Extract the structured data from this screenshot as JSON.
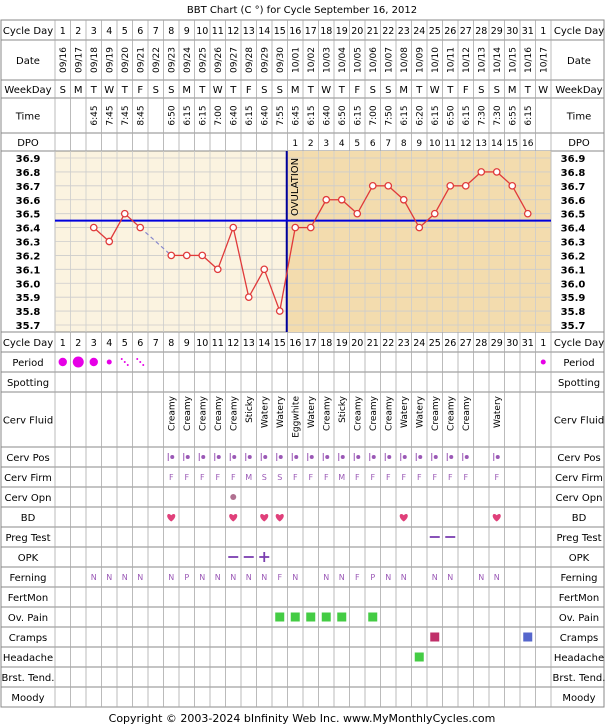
{
  "title": "BBT Chart (C °) for Cycle September 16, 2012",
  "footer": "Copyright © 2003-2024 bInfinity Web Inc.    www.MyMonthlyCycles.com",
  "colors": {
    "temp_line": "#e03a3a",
    "coverline": "#0000dd",
    "ovulation": "#000099",
    "post_ov_fill": "#f3dcae",
    "pre_ov_fill": "#fbf3e0",
    "grid": "#cccccc",
    "row_border": "#888888",
    "period": "#e600e6",
    "bd_heart": "#e0407a",
    "preg_test": "#7b3fb0",
    "ov_pain": "#44cc44",
    "cramps1": "#c0306a",
    "cramps2": "#5566cc",
    "headache": "#44cc44"
  },
  "row_labels": {
    "cycle_day": "Cycle Day",
    "date": "Date",
    "weekday": "WeekDay",
    "time": "Time",
    "dpo": "DPO",
    "period": "Period",
    "spotting": "Spotting",
    "cerv_fluid": "Cerv Fluid",
    "cerv_pos": "Cerv Pos",
    "cerv_firm": "Cerv Firm",
    "cerv_opn": "Cerv Opn",
    "bd": "BD",
    "preg_test": "Preg Test",
    "opk": "OPK",
    "ferning": "Ferning",
    "fertmon": "FertMon",
    "ov_pain": "Ov. Pain",
    "cramps": "Cramps",
    "headache": "Headache",
    "brst_tend": "Brst. Tend.",
    "moody": "Moody"
  },
  "ovulation_label": "OVULATION",
  "cycle_days": [
    "1",
    "2",
    "3",
    "4",
    "5",
    "6",
    "7",
    "8",
    "9",
    "10",
    "11",
    "12",
    "13",
    "14",
    "15",
    "16",
    "17",
    "18",
    "19",
    "20",
    "21",
    "22",
    "23",
    "24",
    "25",
    "26",
    "27",
    "28",
    "29",
    "30",
    "31",
    "1"
  ],
  "dates": [
    "09/16",
    "09/17",
    "09/18",
    "09/19",
    "09/20",
    "09/21",
    "09/22",
    "09/23",
    "09/24",
    "09/25",
    "09/26",
    "09/27",
    "09/28",
    "09/29",
    "09/30",
    "10/01",
    "10/02",
    "10/03",
    "10/04",
    "10/05",
    "10/06",
    "10/07",
    "10/08",
    "10/09",
    "10/10",
    "10/11",
    "10/12",
    "10/13",
    "10/14",
    "10/15",
    "10/16",
    "10/17"
  ],
  "weekdays": [
    "S",
    "M",
    "T",
    "W",
    "T",
    "F",
    "S",
    "S",
    "M",
    "T",
    "W",
    "T",
    "F",
    "S",
    "S",
    "M",
    "T",
    "W",
    "T",
    "F",
    "S",
    "S",
    "M",
    "T",
    "W",
    "T",
    "F",
    "S",
    "S",
    "M",
    "T",
    "W"
  ],
  "times": [
    "",
    "",
    "6:45",
    "7:45",
    "7:45",
    "8:45",
    "",
    "6:50",
    "6:15",
    "6:15",
    "7:00",
    "6:40",
    "6:15",
    "6:40",
    "7:55",
    "6:45",
    "6:15",
    "6:40",
    "6:50",
    "6:15",
    "7:00",
    "7:50",
    "6:15",
    "6:20",
    "6:15",
    "6:50",
    "6:15",
    "7:30",
    "7:30",
    "6:55",
    "6:15",
    ""
  ],
  "dpo": [
    "",
    "",
    "",
    "",
    "",
    "",
    "",
    "",
    "",
    "",
    "",
    "",
    "",
    "",
    "",
    "1",
    "2",
    "3",
    "4",
    "5",
    "6",
    "7",
    "8",
    "9",
    "10",
    "11",
    "12",
    "13",
    "14",
    "15",
    "16",
    ""
  ],
  "chart_data": {
    "type": "line",
    "title": "BBT Chart (C °) for Cycle September 16, 2012",
    "x_label": "Cycle Day",
    "y_label": "",
    "ylim": [
      35.7,
      36.9
    ],
    "y_ticks": [
      "36.9",
      "36.8",
      "36.7",
      "36.6",
      "36.5",
      "36.4",
      "36.3",
      "36.2",
      "36.1",
      "36.0",
      "35.9",
      "35.8",
      "35.7"
    ],
    "coverline": 36.45,
    "ovulation_day": 15,
    "x": [
      1,
      2,
      3,
      4,
      5,
      6,
      7,
      8,
      9,
      10,
      11,
      12,
      13,
      14,
      15,
      16,
      17,
      18,
      19,
      20,
      21,
      22,
      23,
      24,
      25,
      26,
      27,
      28,
      29,
      30,
      31,
      32
    ],
    "values": [
      null,
      null,
      36.4,
      36.3,
      36.5,
      36.4,
      null,
      36.2,
      36.2,
      36.2,
      36.1,
      36.4,
      35.9,
      36.1,
      35.8,
      36.4,
      36.4,
      36.6,
      36.6,
      36.5,
      36.7,
      36.7,
      36.6,
      36.4,
      36.5,
      36.7,
      36.7,
      36.8,
      36.8,
      36.7,
      36.5,
      null
    ],
    "dashed_segments": [
      [
        6,
        8
      ]
    ],
    "grid": true
  },
  "period": [
    "big",
    "big",
    "big",
    "med",
    "spot",
    "spot",
    "",
    "",
    "",
    "",
    "",
    "",
    "",
    "",
    "",
    "",
    "",
    "",
    "",
    "",
    "",
    "",
    "",
    "",
    "",
    "",
    "",
    "",
    "",
    "",
    "",
    "med"
  ],
  "cerv_fluid": [
    "",
    "",
    "",
    "",
    "",
    "",
    "",
    "Creamy",
    "Creamy",
    "Creamy",
    "Creamy",
    "Creamy",
    "Sticky",
    "Watery",
    "Watery",
    "Eggwhite",
    "Watery",
    "Creamy",
    "Sticky",
    "Creamy",
    "Creamy",
    "Creamy",
    "Watery",
    "Watery",
    "Creamy",
    "Creamy",
    "Creamy",
    "",
    "Watery",
    "",
    "",
    ""
  ],
  "cerv_pos": [
    "",
    "",
    "",
    "",
    "",
    "",
    "",
    "dot",
    "dot",
    "dot",
    "dot",
    "dot",
    "dot",
    "dot",
    "dot",
    "dot",
    "dot",
    "dot",
    "dot",
    "dot",
    "dot",
    "dot",
    "dot",
    "dot",
    "dot",
    "dot",
    "dot",
    "",
    "dot",
    "",
    "",
    ""
  ],
  "cerv_firm": [
    "",
    "",
    "",
    "",
    "",
    "",
    "",
    "F",
    "F",
    "F",
    "F",
    "F",
    "M",
    "S",
    "S",
    "F",
    "F",
    "F",
    "M",
    "F",
    "F",
    "F",
    "F",
    "F",
    "F",
    "F",
    "F",
    "",
    "F",
    "",
    "",
    ""
  ],
  "cerv_opn": [
    "",
    "",
    "",
    "",
    "",
    "",
    "",
    "",
    "",
    "",
    "",
    "dot",
    "",
    "",
    "",
    "",
    "",
    "",
    "",
    "",
    "",
    "",
    "",
    "",
    "",
    "",
    "",
    "",
    "",
    "",
    "",
    ""
  ],
  "bd": [
    8,
    12,
    14,
    15,
    23,
    29
  ],
  "preg_test": [
    25,
    26
  ],
  "opk": [
    "",
    "",
    "",
    "",
    "",
    "",
    "",
    "",
    "",
    "",
    "",
    "neg",
    "neg",
    "pos",
    "",
    "",
    "",
    "",
    "",
    "",
    "",
    "",
    "",
    "",
    "",
    "",
    "",
    "",
    "",
    "",
    "",
    ""
  ],
  "ferning": [
    "",
    "",
    "N",
    "N",
    "N",
    "N",
    "",
    "N",
    "P",
    "N",
    "N",
    "N",
    "N",
    "N",
    "F",
    "N",
    "",
    "N",
    "N",
    "F",
    "P",
    "N",
    "N",
    "",
    "N",
    "N",
    "",
    "N",
    "N",
    "",
    "",
    ""
  ],
  "ov_pain": [
    15,
    16,
    17,
    18,
    19,
    21
  ],
  "cramps": [
    {
      "day": 25,
      "kind": "cramps1"
    },
    {
      "day": 31,
      "kind": "cramps2"
    }
  ],
  "headache": [
    24
  ]
}
